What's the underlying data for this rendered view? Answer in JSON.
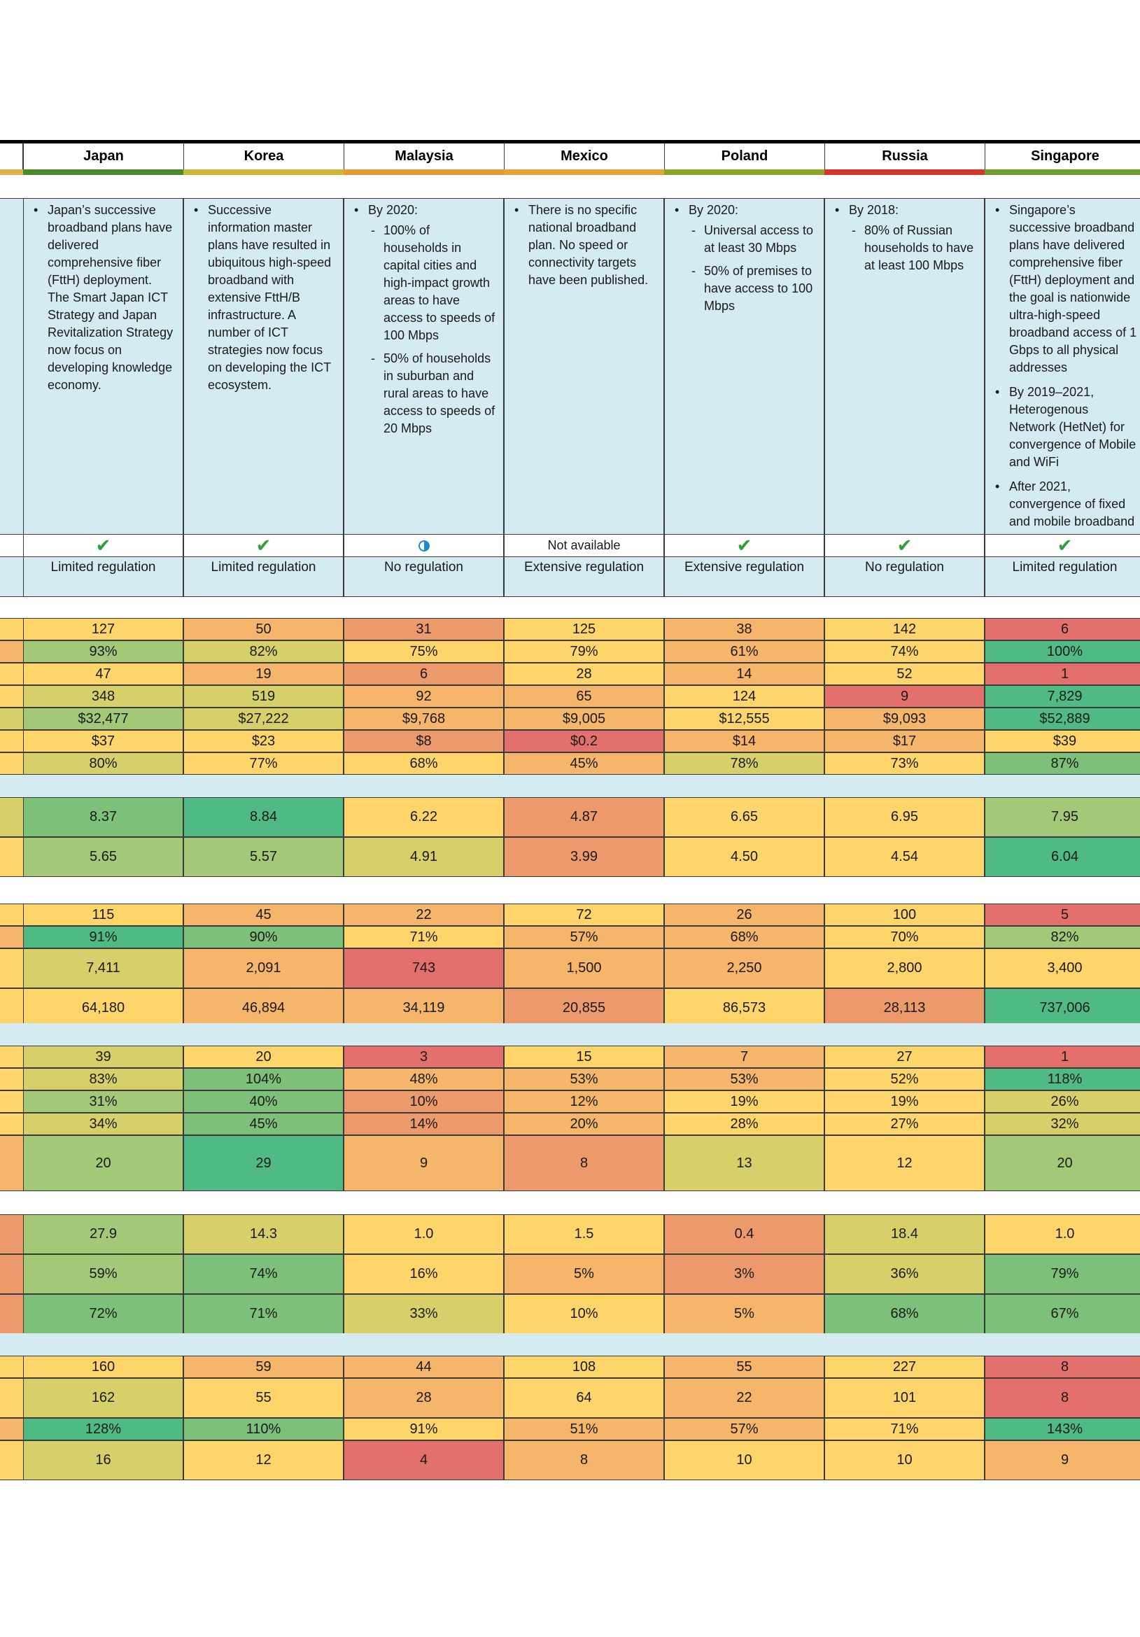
{
  "countries": [
    "Japan",
    "Korea",
    "Malaysia",
    "Mexico",
    "Poland",
    "Russia",
    "Singapore"
  ],
  "colors": {
    "heat": [
      "#e3706c",
      "#ec9a6c",
      "#f5b56a",
      "#fdd56a",
      "#d7d06a",
      "#a3c878",
      "#7dc07a",
      "#4fba84"
    ],
    "header_bar": [
      "#e0b04a",
      "#4c8a2e",
      "#c9b83a",
      "#e79a32",
      "#e9a332",
      "#8aa52a",
      "#d4382c",
      "#6ea12c"
    ],
    "panel": "#d4ebf2"
  },
  "plans": [
    {
      "items": [
        {
          "text": "Japan’s successive broadband plans have delivered comprehensive fiber (FttH) deployment. The Smart Japan ICT Strategy and Japan Revitalization Strategy now focus on developing knowledge economy.",
          "subs": []
        }
      ]
    },
    {
      "items": [
        {
          "text": "Successive information master plans have resulted in ubiquitous high-speed broadband with extensive FttH/B infrastructure. A number of ICT strategies now focus on developing the ICT ecosystem.",
          "subs": []
        }
      ]
    },
    {
      "items": [
        {
          "text": "By 2020:",
          "subs": [
            "100% of households in capital cities and high-impact growth areas to have access to speeds of 100 Mbps",
            "50% of households in suburban and rural areas to have access to speeds of 20 Mbps"
          ]
        }
      ]
    },
    {
      "items": [
        {
          "text": "There is no specific national broadband plan. No speed or connectivity targets have been published.",
          "subs": []
        }
      ]
    },
    {
      "items": [
        {
          "text": "By 2020:",
          "subs": [
            "Universal access to at least 30 Mbps",
            "50% of premises to have access to 100 Mbps"
          ]
        }
      ]
    },
    {
      "items": [
        {
          "text": "By 2018:",
          "subs": [
            "80% of Russian households to have at least 100 Mbps"
          ]
        }
      ]
    },
    {
      "items": [
        {
          "text": "Singapore’s successive broadband plans have delivered comprehensive fiber (FttH) deployment and the goal is nationwide ultra-high-speed broadband access of 1 Gbps to all physical addresses",
          "subs": []
        },
        {
          "text": "By 2019–2021, Heterogenous Network (HetNet) for convergence of Mobile and WiFi",
          "subs": []
        },
        {
          "text": "After 2021, convergence of fixed and mobile broadband",
          "subs": []
        }
      ]
    }
  ],
  "status_row": [
    {
      "type": "check",
      "symbol": "✔"
    },
    {
      "type": "check",
      "symbol": "✔"
    },
    {
      "type": "half",
      "symbol": ""
    },
    {
      "type": "text",
      "symbol": "Not available"
    },
    {
      "type": "check",
      "symbol": "✔"
    },
    {
      "type": "check",
      "symbol": "✔"
    },
    {
      "type": "check",
      "symbol": "✔"
    }
  ],
  "regulation_row": [
    "Limited regulation",
    "Limited regulation",
    "No regulation",
    "Extensive regulation",
    "Extensive regulation",
    "No regulation",
    "Limited regulation"
  ],
  "groups": [
    {
      "rows": [
        {
          "h": 32,
          "left_color": 3,
          "cells": [
            [
              "127",
              3
            ],
            [
              "50",
              2
            ],
            [
              "31",
              1
            ],
            [
              "125",
              3
            ],
            [
              "38",
              2
            ],
            [
              "142",
              3
            ],
            [
              "6",
              0
            ]
          ]
        },
        {
          "h": 32,
          "left_color": 2,
          "cells": [
            [
              "93%",
              5
            ],
            [
              "82%",
              4
            ],
            [
              "75%",
              3
            ],
            [
              "79%",
              3
            ],
            [
              "61%",
              2
            ],
            [
              "74%",
              3
            ],
            [
              "100%",
              7
            ]
          ]
        },
        {
          "h": 32,
          "left_color": 3,
          "cells": [
            [
              "47",
              3
            ],
            [
              "19",
              2
            ],
            [
              "6",
              1
            ],
            [
              "28",
              3
            ],
            [
              "14",
              2
            ],
            [
              "52",
              3
            ],
            [
              "1",
              0
            ]
          ]
        },
        {
          "h": 32,
          "left_color": 3,
          "cells": [
            [
              "348",
              4
            ],
            [
              "519",
              4
            ],
            [
              "92",
              2
            ],
            [
              "65",
              2
            ],
            [
              "124",
              3
            ],
            [
              "9",
              0
            ],
            [
              "7,829",
              7
            ]
          ]
        },
        {
          "h": 32,
          "left_color": 4,
          "cells": [
            [
              "$32,477",
              5
            ],
            [
              "$27,222",
              4
            ],
            [
              "$9,768",
              2
            ],
            [
              "$9,005",
              2
            ],
            [
              "$12,555",
              3
            ],
            [
              "$9,093",
              2
            ],
            [
              "$52,889",
              7
            ]
          ]
        },
        {
          "h": 32,
          "left_color": 3,
          "cells": [
            [
              "$37",
              3
            ],
            [
              "$23",
              3
            ],
            [
              "$8",
              1
            ],
            [
              "$0.2",
              0
            ],
            [
              "$14",
              2
            ],
            [
              "$17",
              2
            ],
            [
              "$39",
              3
            ]
          ]
        },
        {
          "h": 32,
          "left_color": 3,
          "cells": [
            [
              "80%",
              4
            ],
            [
              "77%",
              3
            ],
            [
              "68%",
              3
            ],
            [
              "45%",
              2
            ],
            [
              "78%",
              4
            ],
            [
              "73%",
              3
            ],
            [
              "87%",
              6
            ]
          ]
        }
      ]
    },
    {
      "rows": [
        {
          "h": 57,
          "left_color": 4,
          "cells": [
            [
              "8.37",
              6
            ],
            [
              "8.84",
              7
            ],
            [
              "6.22",
              3
            ],
            [
              "4.87",
              1
            ],
            [
              "6.65",
              3
            ],
            [
              "6.95",
              3
            ],
            [
              "7.95",
              5
            ]
          ]
        },
        {
          "h": 57,
          "left_color": 3,
          "cells": [
            [
              "5.65",
              5
            ],
            [
              "5.57",
              5
            ],
            [
              "4.91",
              4
            ],
            [
              "3.99",
              1
            ],
            [
              "4.50",
              3
            ],
            [
              "4.54",
              3
            ],
            [
              "6.04",
              7
            ]
          ]
        }
      ]
    },
    {
      "rows": [
        {
          "h": 32,
          "left_color": 3,
          "cells": [
            [
              "115",
              3
            ],
            [
              "45",
              2
            ],
            [
              "22",
              2
            ],
            [
              "72",
              3
            ],
            [
              "26",
              2
            ],
            [
              "100",
              3
            ],
            [
              "5",
              0
            ]
          ]
        },
        {
          "h": 32,
          "left_color": 2,
          "cells": [
            [
              "91%",
              7
            ],
            [
              "90%",
              6
            ],
            [
              "71%",
              3
            ],
            [
              "57%",
              2
            ],
            [
              "68%",
              2
            ],
            [
              "70%",
              3
            ],
            [
              "82%",
              5
            ]
          ]
        },
        {
          "h": 57,
          "left_color": 3,
          "cells": [
            [
              "7,411",
              4
            ],
            [
              "2,091",
              2
            ],
            [
              "743",
              0
            ],
            [
              "1,500",
              2
            ],
            [
              "2,250",
              2
            ],
            [
              "2,800",
              3
            ],
            [
              "3,400",
              3
            ]
          ]
        },
        {
          "h": 57,
          "left_color": 3,
          "cells": [
            [
              "64,180",
              3
            ],
            [
              "46,894",
              2
            ],
            [
              "34,119",
              2
            ],
            [
              "20,855",
              1
            ],
            [
              "86,573",
              3
            ],
            [
              "28,113",
              1
            ],
            [
              "737,006",
              7
            ]
          ]
        }
      ]
    },
    {
      "rows": [
        {
          "h": 32,
          "left_color": 3,
          "cells": [
            [
              "39",
              4
            ],
            [
              "20",
              3
            ],
            [
              "3",
              0
            ],
            [
              "15",
              3
            ],
            [
              "7",
              2
            ],
            [
              "27",
              3
            ],
            [
              "1",
              0
            ]
          ]
        },
        {
          "h": 32,
          "left_color": 3,
          "cells": [
            [
              "83%",
              4
            ],
            [
              "104%",
              6
            ],
            [
              "48%",
              2
            ],
            [
              "53%",
              2
            ],
            [
              "53%",
              2
            ],
            [
              "52%",
              3
            ],
            [
              "118%",
              7
            ]
          ]
        },
        {
          "h": 32,
          "left_color": 3,
          "cells": [
            [
              "31%",
              5
            ],
            [
              "40%",
              6
            ],
            [
              "10%",
              1
            ],
            [
              "12%",
              2
            ],
            [
              "19%",
              3
            ],
            [
              "19%",
              3
            ],
            [
              "26%",
              4
            ]
          ]
        },
        {
          "h": 32,
          "left_color": 3,
          "cells": [
            [
              "34%",
              4
            ],
            [
              "45%",
              6
            ],
            [
              "14%",
              1
            ],
            [
              "20%",
              2
            ],
            [
              "28%",
              3
            ],
            [
              "27%",
              3
            ],
            [
              "32%",
              4
            ]
          ]
        },
        {
          "h": 80,
          "left_color": 2,
          "cells": [
            [
              "20",
              5
            ],
            [
              "29",
              7
            ],
            [
              "9",
              2
            ],
            [
              "8",
              1
            ],
            [
              "13",
              4
            ],
            [
              "12",
              3
            ],
            [
              "20",
              5
            ]
          ]
        }
      ]
    },
    {
      "rows": [
        {
          "h": 57,
          "left_color": 1,
          "cells": [
            [
              "27.9",
              5
            ],
            [
              "14.3",
              4
            ],
            [
              "1.0",
              3
            ],
            [
              "1.5",
              3
            ],
            [
              "0.4",
              1
            ],
            [
              "18.4",
              4
            ],
            [
              "1.0",
              3
            ]
          ]
        },
        {
          "h": 57,
          "left_color": 1,
          "cells": [
            [
              "59%",
              5
            ],
            [
              "74%",
              6
            ],
            [
              "16%",
              3
            ],
            [
              "5%",
              2
            ],
            [
              "3%",
              1
            ],
            [
              "36%",
              4
            ],
            [
              "79%",
              6
            ]
          ]
        },
        {
          "h": 57,
          "left_color": 1,
          "cells": [
            [
              "72%",
              6
            ],
            [
              "71%",
              6
            ],
            [
              "33%",
              4
            ],
            [
              "10%",
              3
            ],
            [
              "5%",
              2
            ],
            [
              "68%",
              6
            ],
            [
              "67%",
              6
            ]
          ]
        }
      ]
    },
    {
      "rows": [
        {
          "h": 32,
          "left_color": 3,
          "cells": [
            [
              "160",
              3
            ],
            [
              "59",
              2
            ],
            [
              "44",
              2
            ],
            [
              "108",
              3
            ],
            [
              "55",
              2
            ],
            [
              "227",
              3
            ],
            [
              "8",
              0
            ]
          ]
        },
        {
          "h": 57,
          "left_color": 3,
          "cells": [
            [
              "162",
              4
            ],
            [
              "55",
              3
            ],
            [
              "28",
              2
            ],
            [
              "64",
              3
            ],
            [
              "22",
              2
            ],
            [
              "101",
              3
            ],
            [
              "8",
              0
            ]
          ]
        },
        {
          "h": 32,
          "left_color": 2,
          "cells": [
            [
              "128%",
              7
            ],
            [
              "110%",
              6
            ],
            [
              "91%",
              3
            ],
            [
              "51%",
              2
            ],
            [
              "57%",
              2
            ],
            [
              "71%",
              3
            ],
            [
              "143%",
              7
            ]
          ]
        },
        {
          "h": 57,
          "left_color": 3,
          "cells": [
            [
              "16",
              4
            ],
            [
              "12",
              3
            ],
            [
              "4",
              0
            ],
            [
              "8",
              2
            ],
            [
              "10",
              3
            ],
            [
              "10",
              3
            ],
            [
              "9",
              2
            ]
          ]
        }
      ]
    }
  ]
}
